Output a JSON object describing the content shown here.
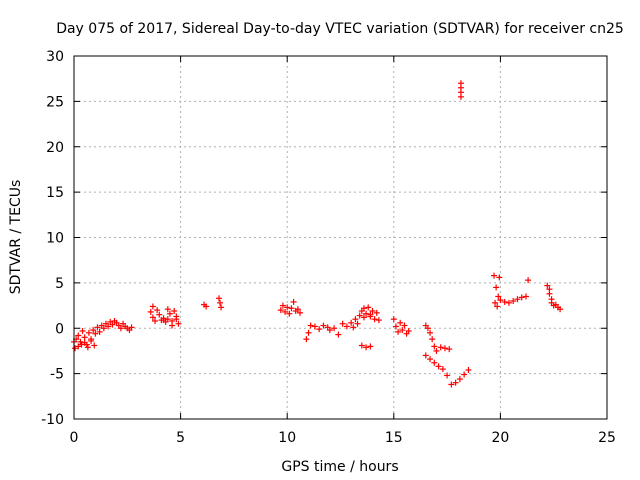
{
  "chart_data": {
    "type": "scatter",
    "title": "Day 075 of 2017, Sidereal Day-to-day VTEC variation (SDTVAR) for receiver cn25",
    "xlabel": "GPS time / hours",
    "ylabel": "SDTVAR / TECUs",
    "xlim": [
      0,
      25
    ],
    "ylim": [
      -10,
      30
    ],
    "xticks": [
      0,
      5,
      10,
      15,
      20,
      25
    ],
    "yticks": [
      -10,
      -5,
      0,
      5,
      10,
      15,
      20,
      25,
      30
    ],
    "grid": true,
    "marker": "+",
    "series_color": "#ff0000",
    "series": [
      {
        "name": "SDTVAR",
        "x": [
          0.0,
          0.1,
          0.2,
          0.3,
          0.4,
          0.5,
          0.6,
          0.7,
          0.8,
          0.9,
          1.0,
          1.1,
          1.2,
          1.3,
          1.4,
          1.5,
          1.6,
          1.7,
          1.8,
          1.9,
          2.0,
          2.1,
          2.2,
          2.3,
          2.4,
          2.5,
          2.6,
          2.7,
          0.05,
          0.2,
          0.35,
          0.5,
          0.65,
          0.8,
          0.95,
          3.6,
          3.7,
          3.8,
          3.9,
          4.0,
          4.1,
          4.2,
          4.3,
          4.4,
          4.5,
          4.6,
          4.7,
          4.8,
          4.9,
          4.4,
          4.6,
          4.8,
          3.7,
          4.2,
          6.1,
          6.2,
          6.8,
          6.85,
          6.9,
          9.7,
          9.8,
          9.9,
          10.0,
          10.1,
          10.2,
          10.3,
          10.4,
          10.5,
          10.6,
          10.9,
          11.0,
          11.1,
          11.3,
          11.5,
          11.7,
          11.9,
          12.0,
          12.2,
          12.4,
          12.6,
          12.8,
          13.0,
          13.2,
          13.4,
          13.5,
          13.6,
          13.7,
          13.8,
          13.9,
          14.0,
          14.1,
          14.2,
          14.3,
          13.1,
          13.3,
          13.6,
          13.9,
          13.5,
          13.7,
          13.9,
          15.0,
          15.1,
          15.2,
          15.3,
          15.4,
          15.5,
          15.6,
          15.7,
          16.5,
          16.6,
          16.7,
          16.8,
          16.9,
          17.0,
          17.2,
          17.4,
          17.6,
          16.5,
          16.7,
          16.9,
          17.1,
          17.3,
          17.5,
          17.7,
          17.9,
          18.1,
          18.3,
          18.5,
          18.15,
          18.15,
          18.15,
          18.15,
          19.7,
          19.8,
          19.9,
          19.75,
          19.85,
          19.95,
          20.0,
          20.2,
          20.4,
          20.6,
          20.8,
          21.0,
          21.2,
          21.3,
          22.2,
          22.3,
          22.4,
          22.5,
          22.6,
          22.7,
          22.8,
          22.3,
          22.4
        ],
        "y": [
          -1.5,
          -1.2,
          -0.8,
          -1.5,
          -0.3,
          -1.0,
          -1.8,
          -0.5,
          -1.2,
          -0.2,
          -0.6,
          0.1,
          -0.4,
          0.3,
          0.0,
          0.5,
          0.2,
          0.7,
          0.4,
          0.8,
          0.6,
          0.3,
          0.0,
          0.5,
          0.2,
          0.0,
          -0.2,
          0.1,
          -2.2,
          -2.0,
          -1.8,
          -1.6,
          -2.1,
          -1.4,
          -1.9,
          1.8,
          1.2,
          0.8,
          2.0,
          1.5,
          0.9,
          1.1,
          0.7,
          1.0,
          1.6,
          0.8,
          1.9,
          1.3,
          0.5,
          2.1,
          0.3,
          1.0,
          2.4,
          0.9,
          2.6,
          2.4,
          3.3,
          2.8,
          2.3,
          2.0,
          2.5,
          1.8,
          2.3,
          1.6,
          2.2,
          2.9,
          1.9,
          2.1,
          1.7,
          -1.2,
          -0.5,
          0.3,
          0.2,
          -0.1,
          0.3,
          0.1,
          -0.2,
          0.0,
          -0.7,
          0.5,
          0.2,
          0.6,
          1.0,
          1.4,
          1.9,
          2.2,
          1.6,
          2.3,
          1.3,
          1.9,
          1.0,
          1.7,
          0.9,
          0.1,
          0.5,
          1.2,
          1.5,
          -1.9,
          -2.1,
          -2.0,
          1.0,
          0.2,
          -0.4,
          0.6,
          -0.2,
          0.3,
          -0.6,
          -0.3,
          0.3,
          0.0,
          -0.5,
          -1.2,
          -2.0,
          -2.5,
          -2.1,
          -2.2,
          -2.3,
          -3.0,
          -3.4,
          -3.8,
          -4.2,
          -4.5,
          -5.2,
          -6.2,
          -6.0,
          -5.6,
          -5.1,
          -4.6,
          27.0,
          26.5,
          26.0,
          25.5,
          5.8,
          4.5,
          3.5,
          2.8,
          2.4,
          5.6,
          3.1,
          2.9,
          2.8,
          3.0,
          3.2,
          3.4,
          3.5,
          5.3,
          4.7,
          3.8,
          2.8,
          2.5,
          2.6,
          2.3,
          2.1,
          4.3,
          3.2
        ]
      }
    ]
  }
}
